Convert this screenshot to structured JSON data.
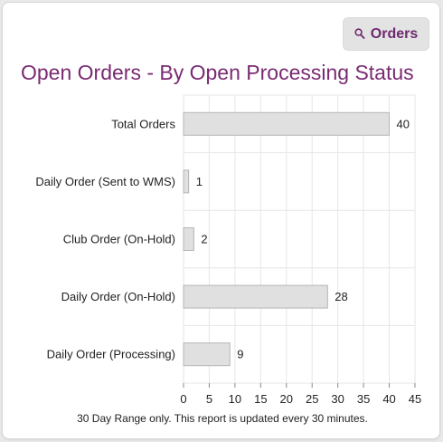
{
  "toolbar": {
    "orders_label": "Orders",
    "orders_icon": "search-icon"
  },
  "page_title": "Open Orders - By Open Processing Status",
  "footer_note": "30 Day Range only. This report is updated every 30 minutes.",
  "colors": {
    "title": "#7a2a72",
    "bar_fill": "#e0e0e0",
    "bar_stroke": "#b5b5b5",
    "grid": "#e6e6e6"
  },
  "chart_data": {
    "type": "bar",
    "orientation": "horizontal",
    "title": "Open Orders - By Open Processing Status",
    "categories": [
      "Total Orders",
      "Daily Order (Sent to WMS)",
      "Club Order (On-Hold)",
      "Daily Order (On-Hold)",
      "Daily Order (Processing)"
    ],
    "values": [
      40,
      1,
      2,
      28,
      9
    ],
    "data_labels": [
      "40",
      "1",
      "2",
      "28",
      "9"
    ],
    "x_ticks": [
      "0",
      "5",
      "10",
      "15",
      "20",
      "25",
      "30",
      "35",
      "40",
      "45"
    ],
    "xlim": [
      0,
      45
    ],
    "grid": true,
    "legend": "none",
    "xlabel": "",
    "ylabel": ""
  }
}
